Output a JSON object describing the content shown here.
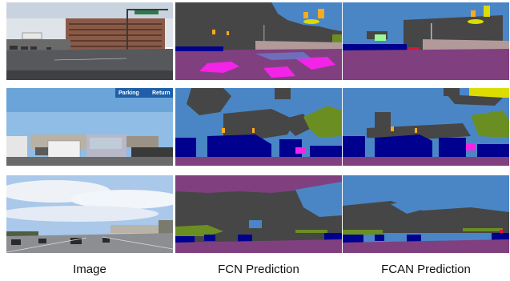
{
  "figure": {
    "columns": [
      "Image",
      "FCN Prediction",
      "FCAN Prediction"
    ],
    "sign_text": {
      "parking": "Parking",
      "return": "Return"
    }
  },
  "colors": {
    "sky": "#4a86c5",
    "building": "#464646",
    "road": "#80407f",
    "sidewalk": "#f423e8",
    "vegetation": "#6b8e23",
    "car": "#00008e",
    "terrain": "#98fb98",
    "traffic_sign": "#dcdc00",
    "traffic_light": "#faaa1e",
    "wall": "#b39a9a",
    "fence": "#be9999",
    "person": "#dc143c"
  }
}
